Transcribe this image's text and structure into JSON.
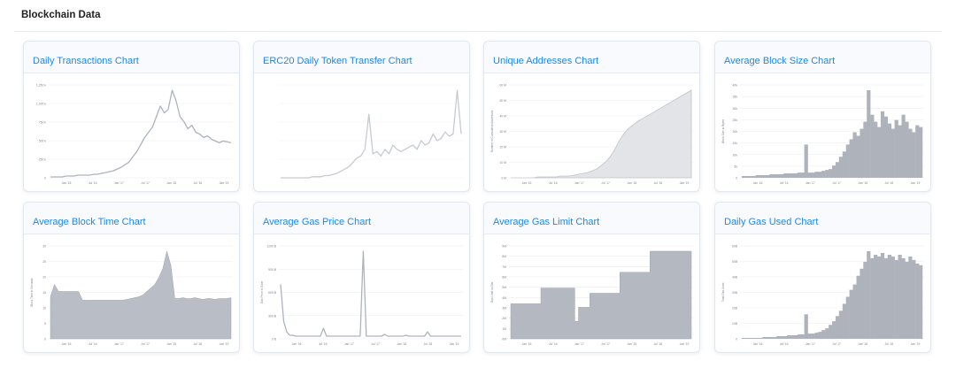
{
  "page": {
    "section_title": "Blockchain Data"
  },
  "cards": [
    {
      "title": "Daily Transactions Chart",
      "tone": "#adb3bd",
      "faded": false,
      "kind": "line",
      "y_ticks": [
        "1,250 k",
        "1,000 k",
        "750 k",
        "500 k",
        "250 k",
        "0"
      ],
      "x_ticks": [
        "Jan '16",
        "Jul '16",
        "Jan '17",
        "Jul '17",
        "Jan '18",
        "Jul '18",
        "Jan '19"
      ],
      "series": [
        1,
        1,
        1,
        1,
        2,
        2,
        2,
        3,
        3,
        3,
        3,
        4,
        4,
        5,
        6,
        7,
        8,
        10,
        12,
        15,
        18,
        24,
        30,
        38,
        46,
        52,
        58,
        70,
        82,
        74,
        78,
        100,
        88,
        70,
        64,
        56,
        60,
        52,
        50,
        46,
        48,
        44,
        42,
        40,
        42,
        41,
        40
      ]
    },
    {
      "title": "ERC20 Daily Token Transfer Chart",
      "tone": "#c6cad1",
      "faded": true,
      "kind": "line",
      "y_ticks": [
        "",
        "",
        "",
        "",
        "",
        ""
      ],
      "x_ticks": [
        "",
        "",
        "",
        "",
        ""
      ],
      "series": [
        0,
        0,
        0,
        0,
        0,
        0,
        0,
        0,
        1,
        1,
        1,
        2,
        2,
        3,
        4,
        6,
        8,
        10,
        14,
        18,
        20,
        26,
        58,
        22,
        24,
        20,
        26,
        22,
        30,
        26,
        24,
        26,
        28,
        30,
        26,
        34,
        30,
        32,
        40,
        34,
        36,
        42,
        38,
        40,
        80,
        40
      ]
    },
    {
      "title": "Unique Addresses Chart",
      "tone": "#bfc3ca",
      "faded": false,
      "kind": "growth",
      "y_ticks": [
        "60 M",
        "50 M",
        "40 M",
        "30 M",
        "20 M",
        "10 M",
        "0 M"
      ],
      "x_ticks": [
        "Jan '16",
        "Jul '16",
        "Jan '17",
        "Jul '17",
        "Jan '18",
        "Jul '18",
        "Jan '19"
      ],
      "series": [
        0,
        0,
        0,
        0,
        0,
        0,
        1,
        1,
        1,
        1,
        1,
        2,
        2,
        2,
        3,
        4,
        5,
        6,
        8,
        10,
        14,
        18,
        24,
        32,
        42,
        50,
        56,
        60,
        64,
        67,
        70,
        73,
        76,
        79,
        82,
        85,
        88,
        91,
        94,
        97,
        100
      ],
      "y_label": "Number of Cumulative Addresses"
    },
    {
      "title": "Average Block Size Chart",
      "tone": "#aeb3bb",
      "faded": false,
      "kind": "bars",
      "y_ticks": [
        "40k",
        "35k",
        "30k",
        "25k",
        "20k",
        "15k",
        "10k",
        "5k",
        "0"
      ],
      "x_ticks": [
        "Jan '16",
        "Jul '16",
        "Jan '17",
        "Jul '17",
        "Jan '18",
        "Jul '18",
        "Jan '19"
      ],
      "series": [
        2,
        2,
        2,
        2,
        3,
        3,
        3,
        3,
        4,
        4,
        4,
        4,
        5,
        5,
        5,
        5,
        6,
        6,
        38,
        6,
        6,
        7,
        7,
        8,
        9,
        10,
        14,
        18,
        24,
        30,
        38,
        44,
        52,
        48,
        56,
        64,
        100,
        72,
        64,
        58,
        76,
        70,
        62,
        56,
        66,
        60,
        72,
        64,
        56,
        52,
        60,
        58
      ],
      "y_label": "Block Size in Bytes"
    },
    {
      "title": "Average Block Time Chart",
      "tone": "#b9bdc5",
      "faded": false,
      "kind": "area",
      "y_ticks": [
        "30",
        "25",
        "20",
        "15",
        "10",
        "5",
        "0"
      ],
      "x_ticks": [
        "Jan '16",
        "Jul '16",
        "Jan '17",
        "Jul '17",
        "Jan '18",
        "Jul '18",
        "Jan '19"
      ],
      "series": [
        48,
        62,
        54,
        54,
        54,
        54,
        54,
        54,
        44,
        44,
        44,
        44,
        44,
        44,
        44,
        44,
        44,
        44,
        44,
        45,
        46,
        47,
        48,
        50,
        54,
        58,
        62,
        70,
        80,
        100,
        84,
        46,
        46,
        47,
        46,
        46,
        47,
        46,
        45,
        46,
        46,
        45,
        46,
        46,
        46,
        47
      ],
      "y_label": "Block Time in Seconds"
    },
    {
      "title": "Average Gas Price Chart",
      "tone": "#aeb3bb",
      "faded": false,
      "kind": "line",
      "y_ticks": [
        "1200 B",
        "900 B",
        "600 B",
        "300 B",
        "0 B"
      ],
      "x_ticks": [
        "Jan '16",
        "Jul '16",
        "Jan '17",
        "Jul '17",
        "Jan '18",
        "Jul '18",
        "Jan '19"
      ],
      "series": [
        62,
        20,
        8,
        4,
        4,
        3,
        3,
        3,
        3,
        3,
        3,
        3,
        3,
        3,
        12,
        3,
        3,
        3,
        3,
        3,
        3,
        3,
        3,
        3,
        3,
        3,
        3,
        100,
        3,
        3,
        3,
        3,
        3,
        3,
        5,
        3,
        3,
        3,
        3,
        3,
        3,
        4,
        3,
        3,
        3,
        3,
        3,
        3,
        8,
        3,
        3,
        3,
        3,
        3,
        3,
        3,
        3,
        3,
        3,
        3
      ],
      "y_label": "Gas Price in Gwei"
    },
    {
      "title": "Average Gas Limit Chart",
      "tone": "#b4b9c1",
      "faded": false,
      "kind": "step",
      "y_ticks": [
        "9M",
        "8M",
        "7M",
        "6M",
        "5M",
        "4M",
        "3M",
        "2M",
        "1M",
        "0M"
      ],
      "x_ticks": [
        "Jan '16",
        "Jul '16",
        "Jan '17",
        "Jul '17",
        "Jan '18",
        "Jul '18",
        "Jan '19"
      ],
      "series": [
        40,
        40,
        40,
        40,
        40,
        40,
        40,
        40,
        58,
        58,
        58,
        58,
        58,
        58,
        58,
        58,
        58,
        20,
        36,
        36,
        36,
        52,
        52,
        52,
        52,
        52,
        52,
        52,
        52,
        76,
        76,
        76,
        76,
        76,
        76,
        76,
        76,
        100,
        100,
        100,
        100,
        100,
        100,
        100,
        100,
        100,
        100,
        100,
        100
      ],
      "y_label": "Gas Limit in Gas"
    },
    {
      "title": "Daily Gas Used Chart",
      "tone": "#aeb3bb",
      "faded": false,
      "kind": "bars",
      "y_ticks": [
        "60B",
        "50B",
        "40B",
        "30B",
        "20B",
        "10B",
        "0"
      ],
      "x_ticks": [
        "Jan '16",
        "Jul '16",
        "Jan '17",
        "Jul '17",
        "Jan '18",
        "Jul '18",
        "Jan '19"
      ],
      "series": [
        1,
        1,
        1,
        1,
        1,
        1,
        2,
        2,
        2,
        2,
        3,
        3,
        3,
        4,
        4,
        4,
        5,
        5,
        28,
        6,
        6,
        7,
        8,
        10,
        12,
        16,
        20,
        26,
        32,
        40,
        48,
        56,
        62,
        72,
        80,
        88,
        100,
        92,
        96,
        94,
        98,
        92,
        96,
        94,
        90,
        96,
        92,
        88,
        94,
        90,
        86,
        84
      ],
      "y_label": "Total Gas Used"
    }
  ]
}
